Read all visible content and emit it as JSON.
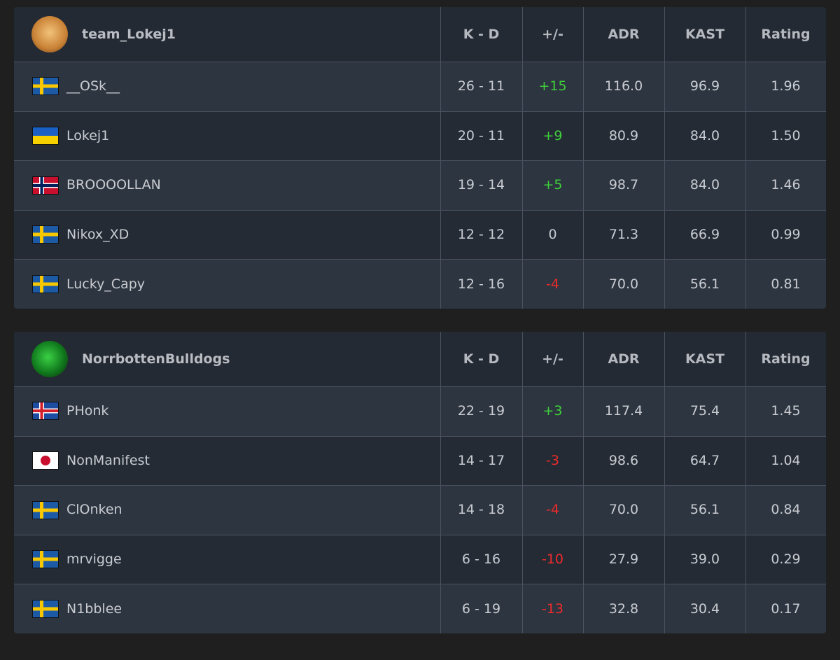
{
  "tables": [
    {
      "team": "team_Lokej1",
      "headers": [
        "K - D",
        "+/-",
        "ADR",
        "KAST",
        "Rating"
      ],
      "rows": [
        [
          "__OSk__",
          "26 - 11",
          "+15",
          "116.0",
          "96.9",
          "1.96"
        ],
        [
          "Lokej1",
          "20 - 11",
          "+9",
          "80.9",
          "84.0",
          "1.50"
        ],
        [
          "BROOOOLLAN",
          "19 - 14",
          "+5",
          "98.7",
          "84.0",
          "1.46"
        ],
        [
          "Nikox_XD",
          "12 - 12",
          "0",
          "71.3",
          "66.9",
          "0.99"
        ],
        [
          "Lucky_Capy",
          "12 - 16",
          "-4",
          "70.0",
          "56.1",
          "0.81"
        ]
      ]
    },
    {
      "team": "NorrbottenBulldogs",
      "headers": [
        "K - D",
        "+/-",
        "ADR",
        "KAST",
        "Rating"
      ],
      "rows": [
        [
          "PHonk",
          "22 - 19",
          "+3",
          "117.4",
          "75.4",
          "1.45"
        ],
        [
          "NonManifest",
          "14 - 17",
          "-3",
          "98.6",
          "64.7",
          "1.04"
        ],
        [
          "ClOnken",
          "14 - 18",
          "-4",
          "70.0",
          "56.1",
          "0.84"
        ],
        [
          "mrvigge",
          "6 - 16",
          "-10",
          "27.9",
          "39.0",
          "0.29"
        ],
        [
          "N1bblee",
          "6 - 19",
          "-13",
          "32.8",
          "30.4",
          "0.17"
        ]
      ]
    }
  ]
}
